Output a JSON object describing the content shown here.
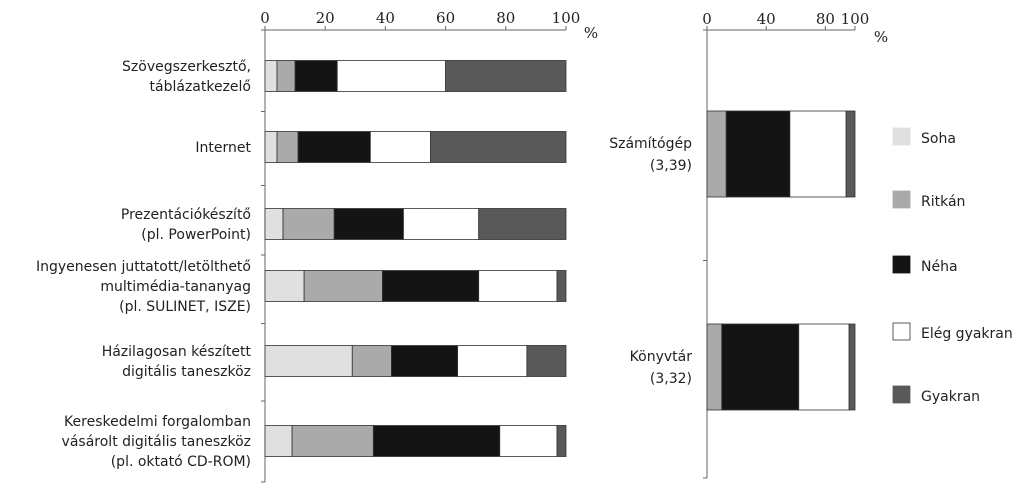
{
  "chart_data": [
    {
      "type": "bar",
      "orientation": "horizontal",
      "stacked": true,
      "unit": "%",
      "xlim": [
        0,
        100
      ],
      "ticks": [
        "0",
        "20",
        "40",
        "60",
        "80",
        "100"
      ],
      "categories": [
        [
          "Szövegszerkesztő,",
          "táblázatkezelő"
        ],
        [
          "Internet"
        ],
        [
          "Prezentációkészítő",
          "(pl. PowerPoint)"
        ],
        [
          "Ingyenesen juttatott/letölthető",
          "multimédia-tananyag",
          "(pl. SULINET, ISZE)"
        ],
        [
          "Házilagosan készített",
          "digitális taneszköz"
        ],
        [
          "Kereskedelmi forgalomban",
          "vásárolt digitális taneszköz",
          "(pl. oktató CD-ROM)"
        ]
      ],
      "series": [
        {
          "name": "Soha",
          "color": "#e0e0e0",
          "values": [
            4,
            4,
            6,
            13,
            29,
            9
          ]
        },
        {
          "name": "Ritkán",
          "color": "#aaaaaa",
          "values": [
            6,
            7,
            17,
            26,
            13,
            27
          ]
        },
        {
          "name": "Néha",
          "color": "#141414",
          "values": [
            14,
            24,
            23,
            32,
            22,
            42
          ]
        },
        {
          "name": "Elég gyakran",
          "color": "#ffffff",
          "values": [
            36,
            20,
            25,
            26,
            23,
            19
          ]
        },
        {
          "name": "Gyakran",
          "color": "#595959",
          "values": [
            40,
            45,
            29,
            3,
            13,
            3
          ]
        }
      ]
    },
    {
      "type": "bar",
      "orientation": "horizontal",
      "stacked": true,
      "unit": "%",
      "xlim": [
        0,
        100
      ],
      "ticks": [
        "0",
        "40",
        "80",
        "100"
      ],
      "categories": [
        [
          "Számítógép",
          "(3,39)"
        ],
        [
          "Könyvtár",
          "(3,32)"
        ]
      ],
      "series": [
        {
          "name": "Soha",
          "color": "#e0e0e0",
          "values": [
            0,
            0
          ]
        },
        {
          "name": "Ritkán",
          "color": "#aaaaaa",
          "values": [
            13,
            10
          ]
        },
        {
          "name": "Néha",
          "color": "#141414",
          "values": [
            43,
            52
          ]
        },
        {
          "name": "Elég gyakran",
          "color": "#ffffff",
          "values": [
            38,
            34
          ]
        },
        {
          "name": "Gyakran",
          "color": "#595959",
          "values": [
            6,
            4
          ]
        }
      ]
    }
  ],
  "legend": [
    {
      "label": "Soha",
      "color": "#e0e0e0"
    },
    {
      "label": "Ritkán",
      "color": "#aaaaaa"
    },
    {
      "label": "Néha",
      "color": "#141414"
    },
    {
      "label": "Elég gyakran",
      "color": "#ffffff"
    },
    {
      "label": "Gyakran",
      "color": "#595959"
    }
  ]
}
